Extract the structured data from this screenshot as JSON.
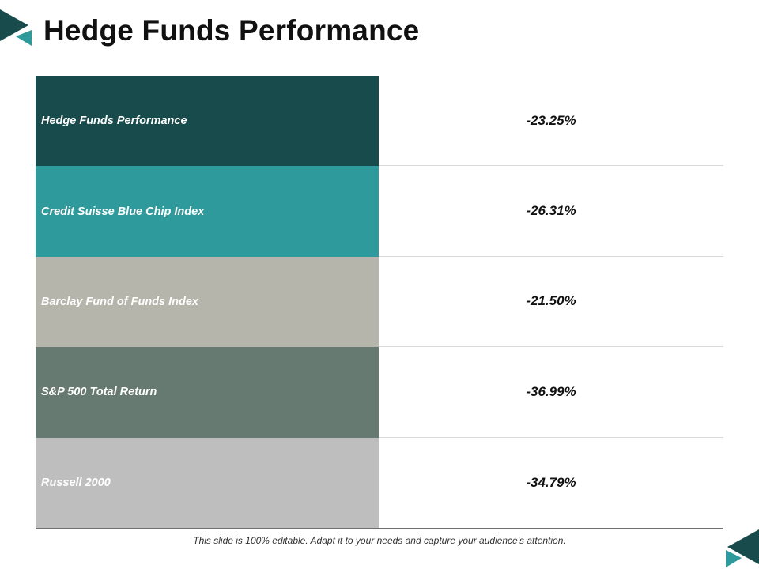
{
  "title": "Hedge Funds Performance",
  "rows": [
    {
      "label": "Hedge Funds Performance",
      "value": "-23.25%",
      "color": "#184b4b"
    },
    {
      "label": "Credit Suisse Blue Chip Index",
      "value": "-26.31%",
      "color": "#2e9a9b"
    },
    {
      "label": "Barclay Fund of Funds Index",
      "value": "-21.50%",
      "color": "#b5b5ab"
    },
    {
      "label": "S&P 500 Total Return",
      "value": "-36.99%",
      "color": "#677a71"
    },
    {
      "label": "Russell 2000",
      "value": "-34.79%",
      "color": "#bebebe"
    }
  ],
  "footer": "This slide is 100% editable. Adapt it to your needs and capture your audience's attention.",
  "colors": {
    "dark_teal": "#184b4b",
    "teal": "#2e9a9b"
  },
  "icons": {
    "top_left": "corner-triangles-icon",
    "bottom_right": "corner-triangles-icon"
  }
}
